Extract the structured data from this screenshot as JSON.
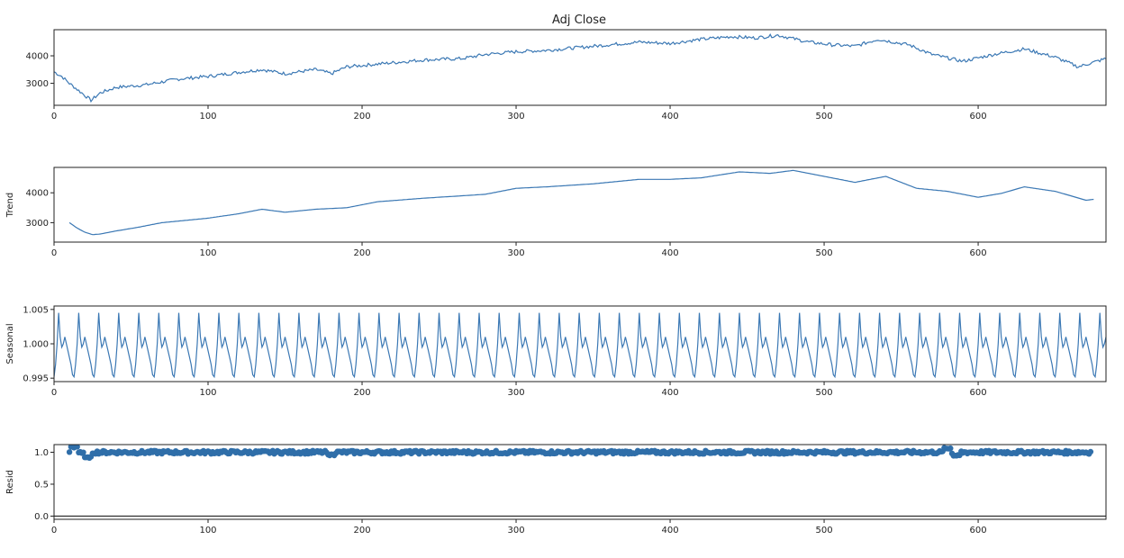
{
  "figure": {
    "title": "Adj Close"
  },
  "chart_data": [
    {
      "type": "line",
      "title": "Adj Close",
      "ylabel": "",
      "xlabel": "",
      "xlim": [
        0,
        683
      ],
      "ylim": [
        2200,
        4950
      ],
      "xticks": [
        0,
        100,
        200,
        300,
        400,
        500,
        600
      ],
      "yticks": [
        3000,
        4000
      ],
      "ytick_labels": [
        "3000",
        "4000"
      ],
      "color": "#3b78b4",
      "noise": 60,
      "series": [
        {
          "x": [
            0,
            5,
            10,
            18,
            24,
            30,
            40,
            60,
            80,
            100,
            120,
            135,
            150,
            170,
            180,
            190,
            210,
            240,
            265,
            280,
            300,
            320,
            350,
            380,
            400,
            420,
            440,
            455,
            470,
            490,
            505,
            520,
            535,
            555,
            570,
            590,
            610,
            630,
            650,
            665,
            683
          ],
          "y": [
            3420,
            3250,
            3000,
            2650,
            2380,
            2650,
            2850,
            2950,
            3150,
            3250,
            3400,
            3500,
            3350,
            3500,
            3350,
            3600,
            3700,
            3850,
            3900,
            4050,
            4150,
            4200,
            4350,
            4500,
            4450,
            4600,
            4700,
            4650,
            4750,
            4500,
            4400,
            4350,
            4600,
            4400,
            4050,
            3800,
            4050,
            4250,
            3950,
            3600,
            3900
          ]
        }
      ]
    },
    {
      "type": "line",
      "title": "",
      "ylabel": "Trend",
      "xlabel": "",
      "xlim": [
        0,
        683
      ],
      "ylim": [
        2350,
        4850
      ],
      "xticks": [
        0,
        100,
        200,
        300,
        400,
        500,
        600
      ],
      "yticks": [
        3000,
        4000
      ],
      "ytick_labels": [
        "3000",
        "4000"
      ],
      "color": "#3b78b4",
      "noise": 0,
      "series": [
        {
          "x": [
            10,
            15,
            20,
            25,
            30,
            40,
            55,
            70,
            80,
            100,
            120,
            135,
            150,
            170,
            190,
            210,
            240,
            265,
            280,
            300,
            320,
            350,
            380,
            400,
            420,
            445,
            465,
            480,
            500,
            520,
            540,
            560,
            580,
            600,
            615,
            630,
            650,
            670,
            675
          ],
          "y": [
            3000,
            2820,
            2680,
            2600,
            2620,
            2720,
            2850,
            3000,
            3050,
            3150,
            3300,
            3450,
            3350,
            3450,
            3500,
            3700,
            3820,
            3900,
            3950,
            4150,
            4200,
            4300,
            4450,
            4450,
            4500,
            4700,
            4650,
            4750,
            4550,
            4350,
            4550,
            4150,
            4050,
            3850,
            3980,
            4200,
            4050,
            3750,
            3780
          ]
        }
      ]
    },
    {
      "type": "line",
      "title": "",
      "ylabel": "Seasonal",
      "xlabel": "",
      "xlim": [
        0,
        683
      ],
      "ylim": [
        0.9945,
        1.0055
      ],
      "xticks": [
        0,
        100,
        200,
        300,
        400,
        500,
        600
      ],
      "yticks": [
        0.995,
        1.0,
        1.005
      ],
      "ytick_labels": [
        "0.995",
        "1.000",
        "1.005"
      ],
      "color": "#3b78b4",
      "period": 13,
      "pattern": [
        0.9952,
        0.997,
        1.0,
        1.0045,
        1.001,
        0.9995,
        1.0,
        1.001,
        1.0,
        0.999,
        0.998,
        0.997,
        0.9955
      ],
      "series": []
    },
    {
      "type": "scatter",
      "title": "",
      "ylabel": "Resid",
      "xlabel": "",
      "xlim": [
        0,
        683
      ],
      "ylim": [
        -0.05,
        1.12
      ],
      "xticks": [
        0,
        100,
        200,
        300,
        400,
        500,
        600
      ],
      "yticks": [
        0.0,
        0.5,
        1.0
      ],
      "ytick_labels": [
        "0.0",
        "0.5",
        "1.0"
      ],
      "color": "#2f6ea9",
      "baseline": 0,
      "series": [
        {
          "x_start": 10,
          "x_end": 673,
          "center": 1.0,
          "spread": 0.025,
          "dips": [
            [
              22,
              0.92
            ],
            [
              13,
              1.08
            ],
            [
              180,
              0.96
            ],
            [
              580,
              1.06
            ],
            [
              586,
              0.95
            ]
          ]
        }
      ]
    }
  ]
}
